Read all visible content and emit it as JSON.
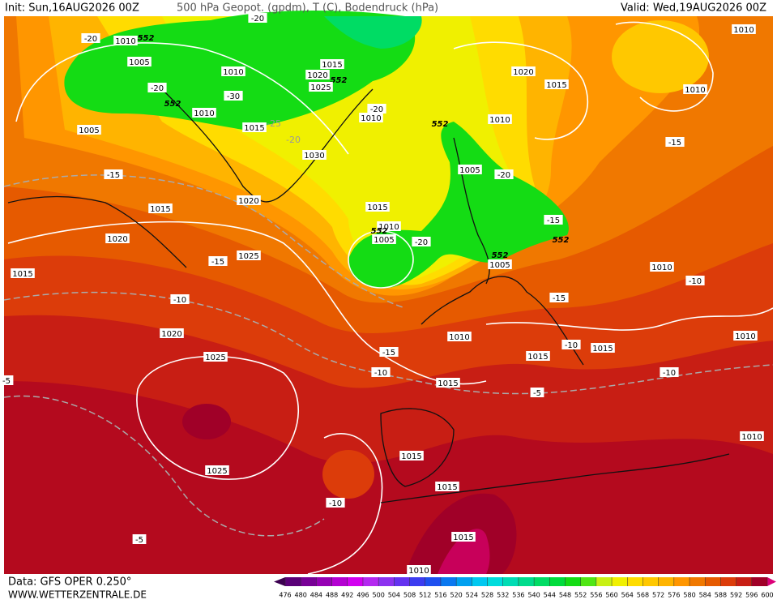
{
  "header": {
    "init": "Init: Sun,16AUG2026 00Z",
    "title": "500 hPa Geopot. (gpdm), T (C), Bodendruck (hPa)",
    "valid": "Valid: Wed,19AUG2026 00Z"
  },
  "footer": {
    "source": "Data: GFS OPER 0.250°",
    "site": "WWW.WETTERZENTRALE.DE"
  },
  "colorbar": {
    "ticks": [
      476,
      480,
      484,
      488,
      492,
      496,
      500,
      504,
      508,
      512,
      516,
      520,
      524,
      528,
      532,
      536,
      540,
      544,
      548,
      552,
      556,
      560,
      564,
      568,
      572,
      576,
      580,
      584,
      588,
      592,
      596,
      600
    ],
    "colors": [
      "#3c0050",
      "#5a0078",
      "#780096",
      "#9600b4",
      "#b400d2",
      "#d200f0",
      "#b428f0",
      "#8c32f0",
      "#6432f0",
      "#3c3cf0",
      "#1e50f0",
      "#0a78f0",
      "#00a0f0",
      "#00c8f0",
      "#00dcdc",
      "#00dcb4",
      "#00dc8c",
      "#00dc64",
      "#00dc3c",
      "#14dc14",
      "#50e614",
      "#c8f014",
      "#f0f000",
      "#ffdc00",
      "#ffc800",
      "#ffb400",
      "#ff9600",
      "#f07800",
      "#e65a00",
      "#dc3c0a",
      "#c81e14",
      "#a00028",
      "#dc0078"
    ]
  },
  "map_labels": [
    "1010",
    "552",
    "1005",
    "-20",
    "-20",
    "552",
    "1005",
    "1010",
    "1015",
    "1020",
    "552",
    "1025",
    "-30",
    "1010",
    "1015",
    "-25",
    "-20",
    "1030",
    "-20",
    "1010",
    "-20",
    "1020",
    "1015",
    "1010",
    "1010",
    "552",
    "1010",
    "-15",
    "1005",
    "-20",
    "-15",
    "1015",
    "1020",
    "1015",
    "1010",
    "1005",
    "-20",
    "552",
    "-15",
    "552",
    "552",
    "1005",
    "1020",
    "-15",
    "1025",
    "1015",
    "1010",
    "-10",
    "-10",
    "-15",
    "1020",
    "1010",
    "-15",
    "1015",
    "1015",
    "-10",
    "1025",
    "-10",
    "-10",
    "1010",
    "1015",
    "-5",
    "-5",
    "1015",
    "1010",
    "1025",
    "1015",
    "-10",
    "-5",
    "1015",
    "1010"
  ]
}
